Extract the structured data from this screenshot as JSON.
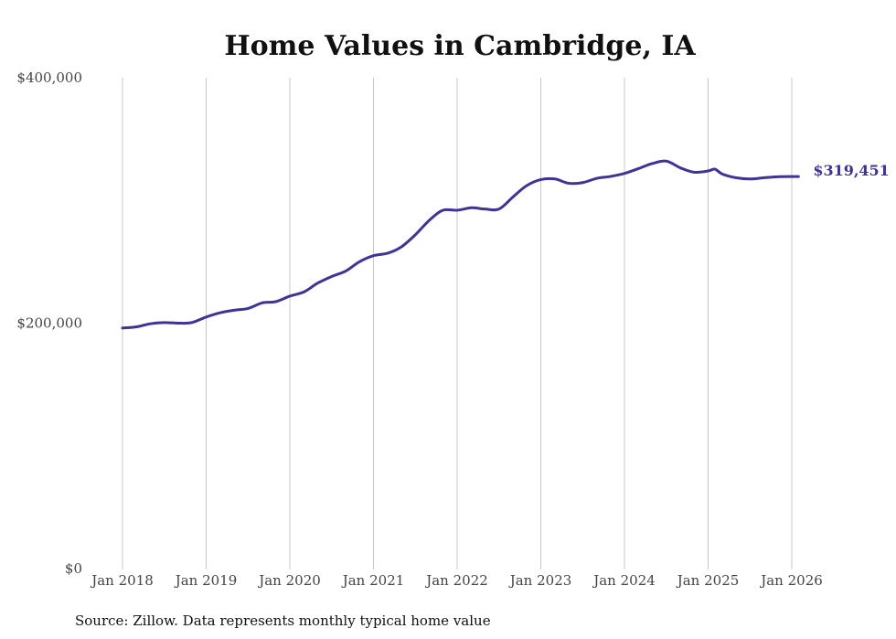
{
  "chart_data": {
    "type": "line",
    "title": "Home Values in Cambridge, IA",
    "xlabel": "",
    "ylabel": "",
    "ylim": [
      0,
      400000
    ],
    "y_ticks": [
      {
        "value": 0,
        "label": "$0"
      },
      {
        "value": 200000,
        "label": "$200,000"
      },
      {
        "value": 400000,
        "label": "$400,000"
      }
    ],
    "x_ticks": [
      {
        "value": 2018,
        "label": "Jan 2018"
      },
      {
        "value": 2019,
        "label": "Jan 2019"
      },
      {
        "value": 2020,
        "label": "Jan 2020"
      },
      {
        "value": 2021,
        "label": "Jan 2021"
      },
      {
        "value": 2022,
        "label": "Jan 2022"
      },
      {
        "value": 2023,
        "label": "Jan 2023"
      },
      {
        "value": 2024,
        "label": "Jan 2024"
      },
      {
        "value": 2025,
        "label": "Jan 2025"
      },
      {
        "value": 2026,
        "label": "Jan 2026"
      }
    ],
    "xlim": [
      2018,
      2026.1
    ],
    "grid": "vertical",
    "series": [
      {
        "name": "Typical home value",
        "color": "#3d3494",
        "x": [
          2018.0,
          2018.17,
          2018.33,
          2018.5,
          2018.67,
          2018.83,
          2019.0,
          2019.17,
          2019.33,
          2019.5,
          2019.67,
          2019.83,
          2020.0,
          2020.17,
          2020.33,
          2020.5,
          2020.67,
          2020.83,
          2021.0,
          2021.17,
          2021.33,
          2021.5,
          2021.67,
          2021.83,
          2022.0,
          2022.17,
          2022.33,
          2022.5,
          2022.67,
          2022.83,
          2023.0,
          2023.17,
          2023.33,
          2023.5,
          2023.67,
          2023.83,
          2024.0,
          2024.17,
          2024.33,
          2024.5,
          2024.67,
          2024.83,
          2025.0,
          2025.08,
          2025.17,
          2025.33,
          2025.5,
          2025.67,
          2025.83,
          2026.0,
          2026.08
        ],
        "values": [
          196000,
          197000,
          199500,
          200500,
          200000,
          200500,
          205000,
          208500,
          210500,
          212000,
          216500,
          217500,
          222000,
          225500,
          232500,
          238000,
          242500,
          250000,
          255000,
          257000,
          262000,
          272000,
          284000,
          292000,
          292000,
          294000,
          293000,
          293000,
          303000,
          312000,
          317000,
          317500,
          314000,
          314500,
          318000,
          319500,
          322000,
          326000,
          330000,
          332000,
          326500,
          323000,
          324000,
          325500,
          321500,
          318500,
          317500,
          318500,
          319300,
          319451,
          319451
        ],
        "end_label": "$319,451"
      }
    ],
    "source": "Source: Zillow. Data represents monthly typical home value"
  }
}
